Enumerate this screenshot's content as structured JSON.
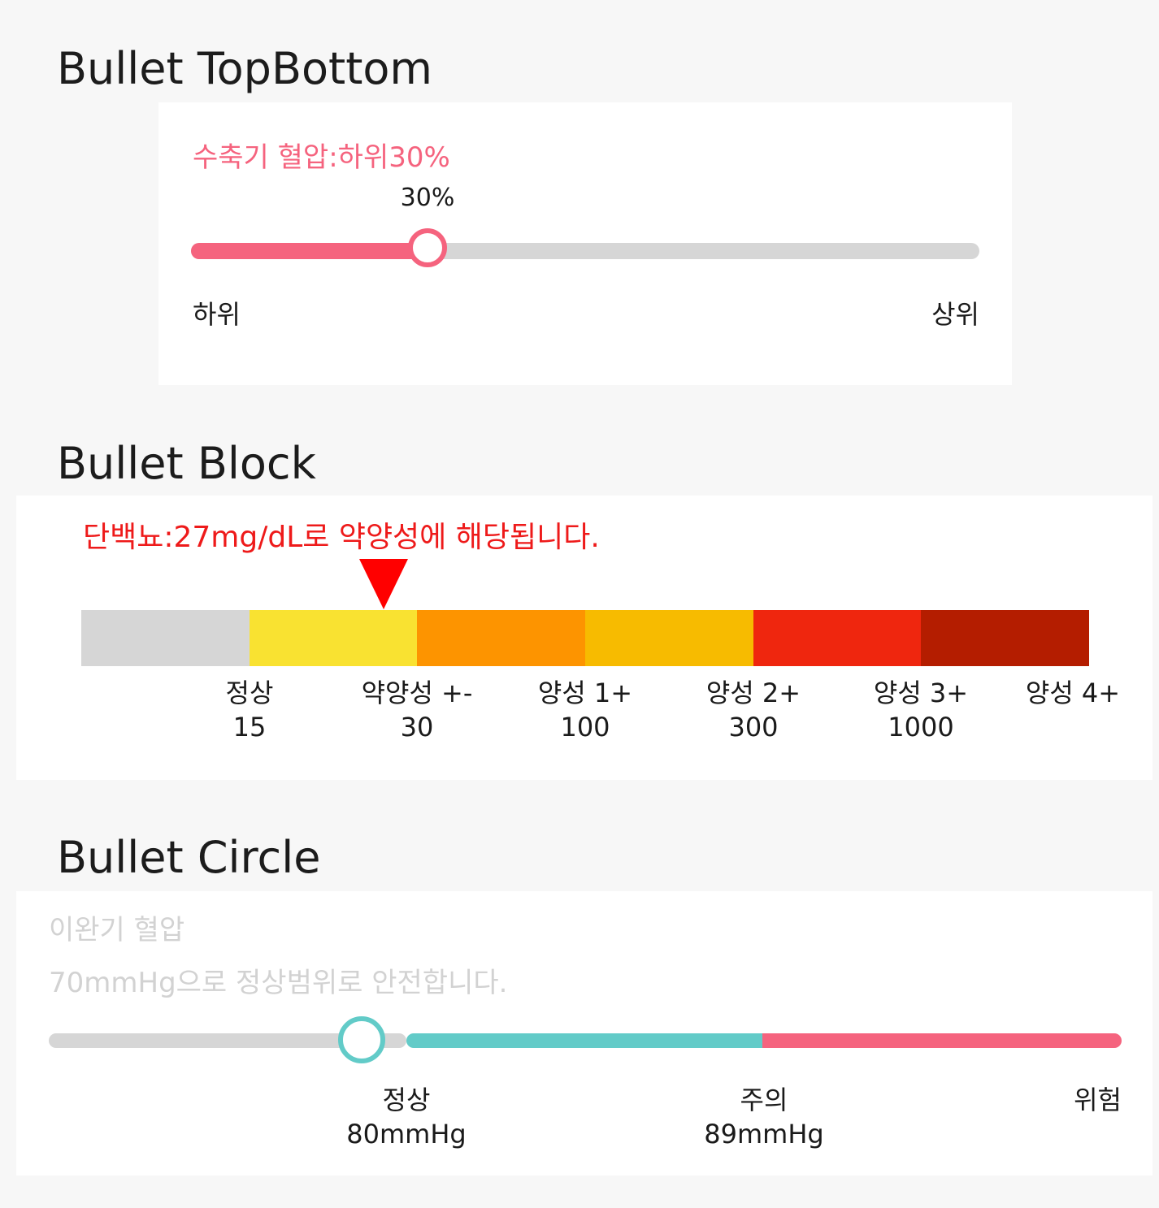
{
  "sections": [
    {
      "title": "Bullet TopBottom"
    },
    {
      "title": "Bullet Block"
    },
    {
      "title": "Bullet Circle"
    }
  ],
  "topbottom": {
    "title": "수축기 혈압:하위30%",
    "value_label": "30%",
    "value_fraction": 0.3,
    "low_label": "하위",
    "high_label": "상위",
    "fill_color": "#f5637e",
    "track_color": "#d6d6d6"
  },
  "block": {
    "title": "단백뇨:27mg/dL로 약양성에 해당됩니다.",
    "marker_color": "#ff0000",
    "marker_position_fraction": 0.3,
    "segment_colors": [
      "#d6d6d6",
      "#f9e231",
      "#fd9400",
      "#f7bb00",
      "#ef260e",
      "#b41d00"
    ],
    "labels": [
      {
        "name": "정상",
        "value": "15"
      },
      {
        "name": "약양성 +-",
        "value": "30"
      },
      {
        "name": "양성 1+",
        "value": "100"
      },
      {
        "name": "양성 2+",
        "value": "300"
      },
      {
        "name": "양성 3+",
        "value": "1000"
      },
      {
        "name": "양성 4+",
        "value": ""
      }
    ]
  },
  "circle": {
    "title": "이완기 혈압",
    "subtitle": "70mmHg으로 정상범위로 안전합니다.",
    "value_mmHg": 70,
    "labels": [
      {
        "name": "정상",
        "value": "80mmHg"
      },
      {
        "name": "주의",
        "value": "89mmHg"
      },
      {
        "name": "위험",
        "value": ""
      }
    ],
    "colors": {
      "below": "#d6d6d6",
      "normal": "#62cbc8",
      "danger": "#f5637e"
    }
  }
}
